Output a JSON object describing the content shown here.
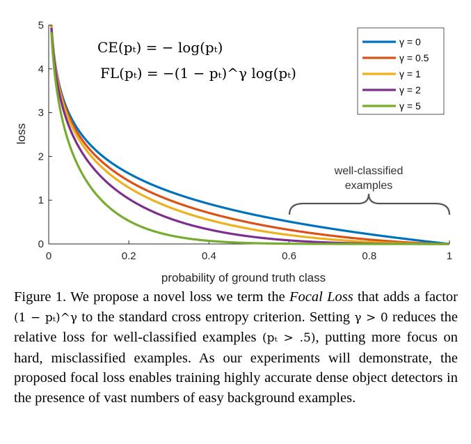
{
  "chart_data": {
    "type": "line",
    "xlabel": "probability of ground truth class",
    "ylabel": "loss",
    "xlim": [
      0,
      1
    ],
    "ylim": [
      0,
      5
    ],
    "xticks": [
      "0",
      "0.2",
      "0.4",
      "0.6",
      "0.8",
      "1"
    ],
    "yticks": [
      "0",
      "1",
      "2",
      "3",
      "4",
      "5"
    ],
    "x_tick_values": [
      0,
      0.2,
      0.4,
      0.6,
      0.8,
      1
    ],
    "y_tick_values": [
      0,
      1,
      2,
      3,
      4,
      5
    ],
    "grid": false,
    "legend_position": "top-right",
    "series": [
      {
        "name": "γ = 0",
        "gamma": 0,
        "color": "#0072BD",
        "x": [
          0.01,
          0.02,
          0.05,
          0.1,
          0.2,
          0.3,
          0.4,
          0.5,
          0.6,
          0.7,
          0.8,
          0.9,
          1.0
        ],
        "y": [
          4.61,
          3.91,
          3.0,
          2.3,
          1.61,
          1.2,
          0.92,
          0.69,
          0.51,
          0.36,
          0.22,
          0.11,
          0.0
        ]
      },
      {
        "name": "γ = 0.5",
        "gamma": 0.5,
        "color": "#D95319",
        "x": [
          0.01,
          0.02,
          0.05,
          0.1,
          0.2,
          0.3,
          0.4,
          0.5,
          0.6,
          0.7,
          0.8,
          0.9,
          1.0
        ],
        "y": [
          4.58,
          3.87,
          2.92,
          2.18,
          1.44,
          1.01,
          0.71,
          0.49,
          0.32,
          0.2,
          0.1,
          0.03,
          0.0
        ]
      },
      {
        "name": "γ = 1",
        "gamma": 1,
        "color": "#EDB120",
        "x": [
          0.01,
          0.02,
          0.05,
          0.1,
          0.2,
          0.3,
          0.4,
          0.5,
          0.6,
          0.7,
          0.8,
          0.9,
          1.0
        ],
        "y": [
          4.56,
          3.83,
          2.85,
          2.07,
          1.29,
          0.84,
          0.55,
          0.35,
          0.2,
          0.11,
          0.04,
          0.01,
          0.0
        ]
      },
      {
        "name": "γ = 2",
        "gamma": 2,
        "color": "#7E2F8E",
        "x": [
          0.01,
          0.02,
          0.05,
          0.1,
          0.2,
          0.3,
          0.4,
          0.5,
          0.6,
          0.7,
          0.8,
          0.9,
          1.0
        ],
        "y": [
          4.51,
          3.76,
          2.7,
          1.87,
          1.03,
          0.59,
          0.33,
          0.17,
          0.08,
          0.03,
          0.01,
          0.0,
          0.0
        ]
      },
      {
        "name": "γ = 5",
        "gamma": 5,
        "color": "#77AC30",
        "x": [
          0.01,
          0.02,
          0.05,
          0.1,
          0.2,
          0.3,
          0.4,
          0.5,
          0.6,
          0.7,
          0.8,
          0.9,
          1.0
        ],
        "y": [
          4.38,
          3.54,
          2.32,
          1.36,
          0.53,
          0.2,
          0.07,
          0.02,
          0.01,
          0.0,
          0.0,
          0.0,
          0.0
        ]
      }
    ],
    "equations": [
      "CE(pₜ) = − log(pₜ)",
      "FL(pₜ) = −(1 − pₜ)^γ log(pₜ)"
    ],
    "annotations": [
      {
        "text_lines": [
          "well-classified",
          "examples"
        ],
        "x_range": [
          0.6,
          1.0
        ],
        "y": 0.75
      }
    ]
  },
  "caption": {
    "p1": "Figure 1. We propose a novel loss we term the ",
    "italic": "Focal Loss",
    "p2": " that adds a factor ",
    "factor": "(1 − pₜ)^γ",
    "p3": " to the standard cross entropy criterion. Setting ",
    "gamma_cond": "γ > 0",
    "p4": " reduces the relative loss for well-classified examples ",
    "pt_cond": "(pₜ > .5)",
    "p5": ", putting more focus on hard, misclassified examples. As our experiments will demonstrate, the proposed focal loss enables training highly accurate dense object detectors in the presence of vast numbers of easy background examples."
  }
}
